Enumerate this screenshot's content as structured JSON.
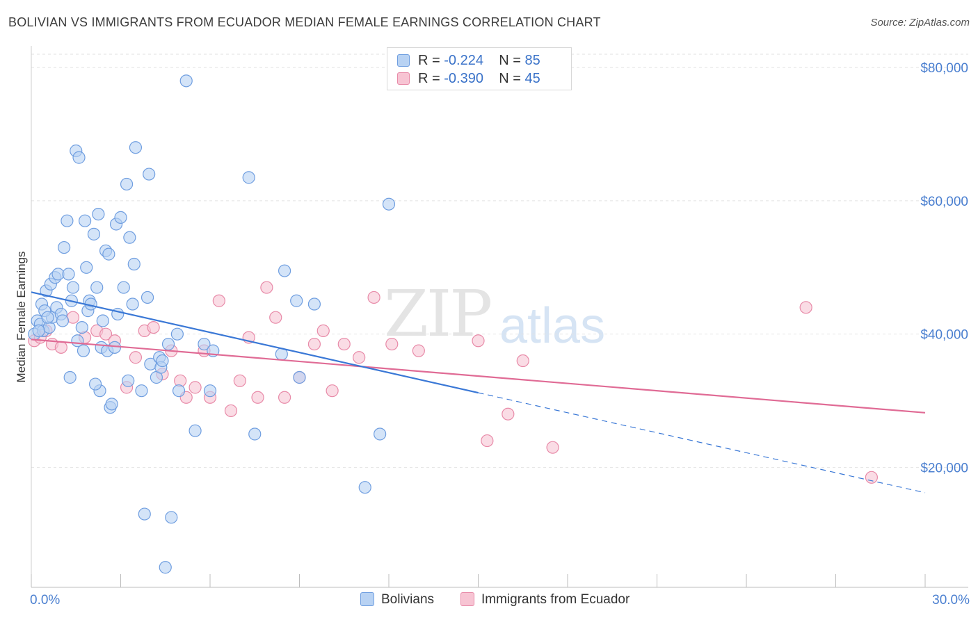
{
  "title": "BOLIVIAN VS IMMIGRANTS FROM ECUADOR MEDIAN FEMALE EARNINGS CORRELATION CHART",
  "source": "Source: ZipAtlas.com",
  "watermark": {
    "zip": "ZIP",
    "atlas": "atlas"
  },
  "legend_top": {
    "rows": [
      {
        "r_label": "R =",
        "r_value": "-0.224",
        "n_label": "N =",
        "n_value": "85"
      },
      {
        "r_label": "R =",
        "r_value": "-0.390",
        "n_label": "N =",
        "n_value": "45"
      }
    ]
  },
  "legend_bottom": {
    "series1": "Bolivians",
    "series2": "Immigrants from Ecuador"
  },
  "colors": {
    "blue_fill": "#b8d2f3",
    "blue_stroke": "#6f9ee0",
    "blue_line": "#3a78d6",
    "pink_fill": "#f7c4d3",
    "pink_stroke": "#e88aa8",
    "pink_line": "#e06b95",
    "tick_text": "#4a7fd0",
    "grid": "#e2e2e2"
  },
  "chart_data": {
    "type": "scatter",
    "title": "BOLIVIAN VS IMMIGRANTS FROM ECUADOR MEDIAN FEMALE EARNINGS CORRELATION CHART",
    "xlabel": "",
    "ylabel": "Median Female Earnings",
    "xlim": [
      0,
      30
    ],
    "ylim": [
      2000,
      82000
    ],
    "x_tick_labels": [
      "0.0%",
      "30.0%"
    ],
    "y_ticks": [
      20000,
      40000,
      60000,
      80000
    ],
    "y_tick_labels": [
      "$20,000",
      "$40,000",
      "$60,000",
      "$80,000"
    ],
    "grid": "horizontal dashed",
    "legend": "bottom-center",
    "series": [
      {
        "name": "Bolivians",
        "r": -0.224,
        "n": 85,
        "trend": {
          "x0": 0,
          "y0": 46300,
          "x1": 15,
          "y1": 31200,
          "dashed_to_x": 30,
          "dashed_to_y": 16200
        },
        "points": [
          [
            0.1,
            40000
          ],
          [
            0.2,
            42000
          ],
          [
            0.3,
            41500
          ],
          [
            0.35,
            44500
          ],
          [
            0.4,
            40500
          ],
          [
            0.5,
            46500
          ],
          [
            0.6,
            41000
          ],
          [
            0.65,
            47500
          ],
          [
            0.7,
            42500
          ],
          [
            0.8,
            48500
          ],
          [
            0.85,
            44000
          ],
          [
            0.9,
            49000
          ],
          [
            1.0,
            43000
          ],
          [
            1.1,
            53000
          ],
          [
            1.2,
            57000
          ],
          [
            1.25,
            49000
          ],
          [
            1.3,
            33500
          ],
          [
            1.4,
            47000
          ],
          [
            1.5,
            67500
          ],
          [
            1.55,
            39000
          ],
          [
            1.6,
            66500
          ],
          [
            1.7,
            41000
          ],
          [
            1.8,
            57000
          ],
          [
            1.85,
            50000
          ],
          [
            1.9,
            43500
          ],
          [
            1.95,
            45000
          ],
          [
            2.0,
            44500
          ],
          [
            2.1,
            55000
          ],
          [
            2.2,
            47000
          ],
          [
            2.25,
            58000
          ],
          [
            2.3,
            31500
          ],
          [
            2.35,
            38000
          ],
          [
            2.4,
            42000
          ],
          [
            2.5,
            52500
          ],
          [
            2.55,
            37500
          ],
          [
            2.6,
            52000
          ],
          [
            2.65,
            29000
          ],
          [
            2.7,
            29500
          ],
          [
            2.8,
            38000
          ],
          [
            2.85,
            56500
          ],
          [
            2.9,
            43000
          ],
          [
            3.0,
            57500
          ],
          [
            3.1,
            47000
          ],
          [
            3.2,
            62500
          ],
          [
            3.25,
            33000
          ],
          [
            3.3,
            54500
          ],
          [
            3.4,
            44500
          ],
          [
            3.45,
            50500
          ],
          [
            3.5,
            68000
          ],
          [
            3.7,
            31500
          ],
          [
            3.8,
            13000
          ],
          [
            3.9,
            45500
          ],
          [
            3.95,
            64000
          ],
          [
            4.0,
            35500
          ],
          [
            4.2,
            33500
          ],
          [
            4.3,
            36500
          ],
          [
            4.35,
            35000
          ],
          [
            4.4,
            36000
          ],
          [
            4.5,
            5000
          ],
          [
            4.6,
            38500
          ],
          [
            4.7,
            12500
          ],
          [
            4.9,
            40000
          ],
          [
            4.95,
            31500
          ],
          [
            5.2,
            78000
          ],
          [
            5.5,
            25500
          ],
          [
            5.8,
            38500
          ],
          [
            6.0,
            31500
          ],
          [
            6.1,
            37500
          ],
          [
            7.3,
            63500
          ],
          [
            7.5,
            25000
          ],
          [
            8.4,
            37000
          ],
          [
            8.5,
            49500
          ],
          [
            8.9,
            45000
          ],
          [
            9.0,
            33500
          ],
          [
            9.5,
            44500
          ],
          [
            11.2,
            17000
          ],
          [
            11.7,
            25000
          ],
          [
            12.0,
            59500
          ],
          [
            0.25,
            40500
          ],
          [
            0.45,
            43500
          ],
          [
            0.55,
            42500
          ],
          [
            1.05,
            42000
          ],
          [
            1.35,
            45000
          ],
          [
            1.75,
            37500
          ],
          [
            2.15,
            32500
          ]
        ]
      },
      {
        "name": "Immigrants from Ecuador",
        "r": -0.39,
        "n": 45,
        "trend": {
          "x0": 0,
          "y0": 39200,
          "x1": 30,
          "y1": 28200
        },
        "points": [
          [
            0.1,
            39000
          ],
          [
            0.3,
            39500
          ],
          [
            0.5,
            40500
          ],
          [
            0.7,
            38500
          ],
          [
            1.0,
            38000
          ],
          [
            1.4,
            42500
          ],
          [
            1.8,
            39500
          ],
          [
            2.2,
            40500
          ],
          [
            2.5,
            40000
          ],
          [
            2.8,
            39000
          ],
          [
            3.2,
            32000
          ],
          [
            3.5,
            36500
          ],
          [
            3.8,
            40500
          ],
          [
            4.1,
            41000
          ],
          [
            4.4,
            34000
          ],
          [
            4.7,
            37500
          ],
          [
            5.0,
            33000
          ],
          [
            5.2,
            30500
          ],
          [
            5.5,
            32000
          ],
          [
            5.8,
            37500
          ],
          [
            6.0,
            30500
          ],
          [
            6.3,
            45000
          ],
          [
            6.7,
            28500
          ],
          [
            7.0,
            33000
          ],
          [
            7.3,
            39500
          ],
          [
            7.6,
            30500
          ],
          [
            7.9,
            47000
          ],
          [
            8.2,
            42500
          ],
          [
            8.5,
            30500
          ],
          [
            9.0,
            33500
          ],
          [
            9.5,
            38500
          ],
          [
            9.8,
            40500
          ],
          [
            10.1,
            31500
          ],
          [
            10.5,
            38500
          ],
          [
            11.0,
            36500
          ],
          [
            11.5,
            45500
          ],
          [
            12.1,
            38500
          ],
          [
            13.0,
            37500
          ],
          [
            15.0,
            39000
          ],
          [
            15.3,
            24000
          ],
          [
            16.0,
            28000
          ],
          [
            16.5,
            36000
          ],
          [
            17.5,
            23000
          ],
          [
            26.0,
            44000
          ],
          [
            28.2,
            18500
          ]
        ]
      }
    ]
  }
}
